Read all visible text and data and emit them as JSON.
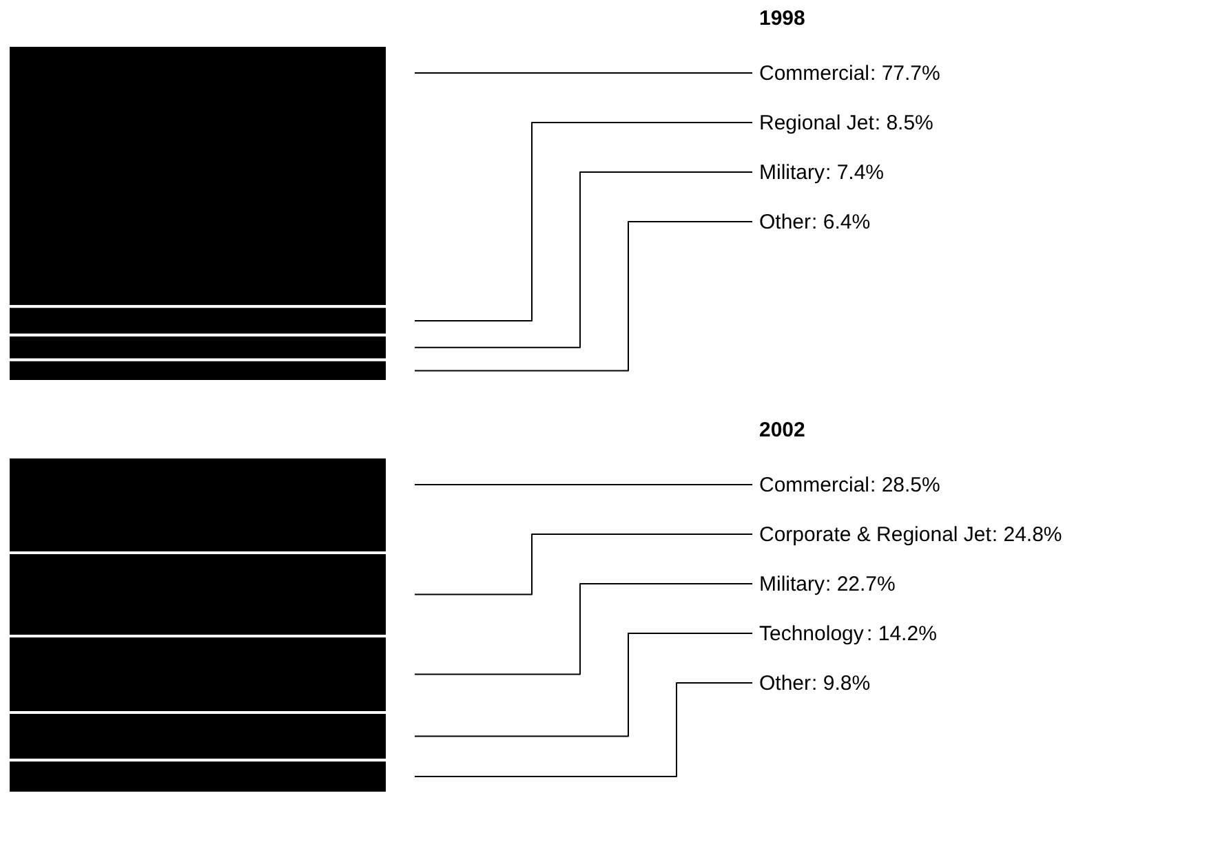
{
  "chart_data": [
    {
      "type": "other",
      "title": "1998",
      "categories": [
        "Commercial",
        "Regional Jet",
        "Military",
        "Other"
      ],
      "values": [
        77.7,
        8.5,
        7.4,
        6.4
      ],
      "value_labels": [
        ": 77.7%",
        ": 8.5%",
        ": 7.4%",
        ": 6.4%"
      ],
      "colors": [
        "#000000",
        "#000000",
        "#000000",
        "#000000"
      ]
    },
    {
      "type": "other",
      "title": "2002",
      "categories": [
        "Commercial",
        "Corporate & Regional Jet",
        "Military",
        "Technology",
        "Other"
      ],
      "values": [
        28.5,
        24.8,
        22.7,
        14.2,
        9.8
      ],
      "value_labels": [
        ": 28.5%",
        ": 24.8%",
        ": 22.7%",
        ": 14.2%",
        ": 9.8%"
      ],
      "colors": [
        "#000000",
        "#000000",
        "#000000",
        "#000000",
        "#000000"
      ]
    }
  ]
}
